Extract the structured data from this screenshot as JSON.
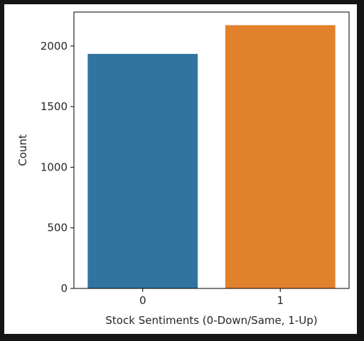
{
  "chart_data": {
    "type": "bar",
    "title": "",
    "xlabel": "Stock Sentiments (0-Down/Same, 1-Up)",
    "ylabel": "Count",
    "categories": [
      "0",
      "1"
    ],
    "values": [
      1935,
      2172
    ],
    "ylim": [
      0,
      2280
    ],
    "yticks": [
      0,
      500,
      1000,
      1500,
      2000
    ],
    "colors": [
      "#3274a1",
      "#e1812c"
    ],
    "grid": false,
    "legend": "none"
  }
}
